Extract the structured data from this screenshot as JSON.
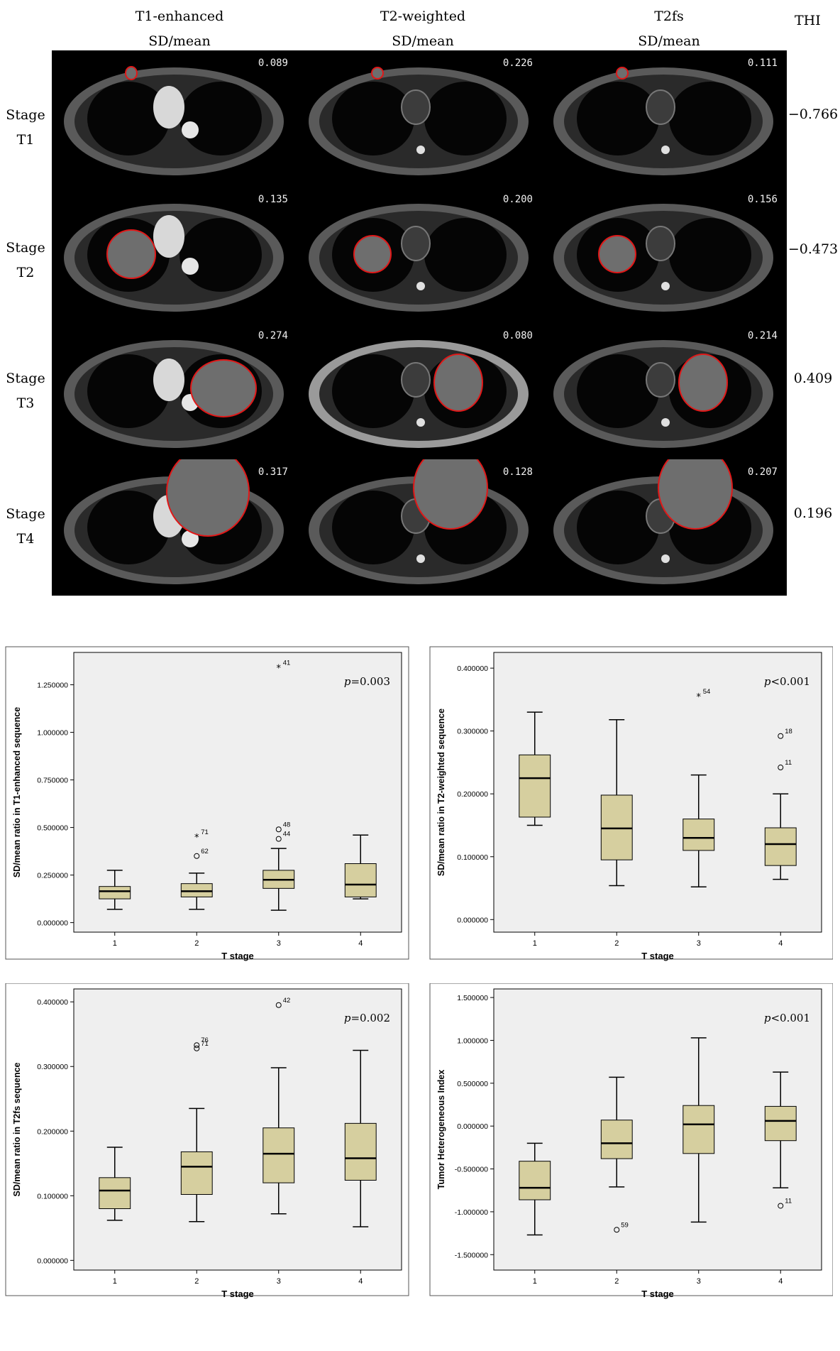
{
  "columns": [
    {
      "name": "T1-enhanced",
      "sub": "SD/mean"
    },
    {
      "name": "T2-weighted",
      "sub": "SD/mean"
    },
    {
      "name": "T2fs",
      "sub": "SD/mean"
    }
  ],
  "thi_header": "THI",
  "rows": [
    {
      "stage_word": "Stage",
      "stage": "T1",
      "values": [
        "0.089",
        "0.226",
        "0.111"
      ],
      "thi": "−0.766"
    },
    {
      "stage_word": "Stage",
      "stage": "T2",
      "values": [
        "0.135",
        "0.200",
        "0.156"
      ],
      "thi": "−0.473"
    },
    {
      "stage_word": "Stage",
      "stage": "T3",
      "values": [
        "0.274",
        "0.080",
        "0.214"
      ],
      "thi": "0.409"
    },
    {
      "stage_word": "Stage",
      "stage": "T4",
      "values": [
        "0.317",
        "0.128",
        "0.207"
      ],
      "thi": "0.196"
    }
  ],
  "colors": {
    "box_fill": "#d6cf9f",
    "plot_bg": "#efefef",
    "roi_outline": "#e01818"
  },
  "chart_data": [
    {
      "type": "box",
      "xlabel": "T stage",
      "ylabel": "SD/mean ratio in T1-enhanced sequence",
      "categories": [
        "1",
        "2",
        "3",
        "4"
      ],
      "yticks": [
        "0.000000",
        "0.250000",
        "0.500000",
        "0.750000",
        "1.000000",
        "1.250000"
      ],
      "ylim": [
        -0.05,
        1.42
      ],
      "annotation": {
        "p": "p",
        "text": "=0.003"
      },
      "boxes": [
        {
          "min": 0.07,
          "q1": 0.125,
          "median": 0.165,
          "q3": 0.19,
          "max": 0.275
        },
        {
          "min": 0.07,
          "q1": 0.135,
          "median": 0.165,
          "q3": 0.205,
          "max": 0.26
        },
        {
          "min": 0.065,
          "q1": 0.18,
          "median": 0.225,
          "q3": 0.275,
          "max": 0.39
        },
        {
          "min": 0.125,
          "q1": 0.135,
          "median": 0.2,
          "q3": 0.31,
          "max": 0.46
        }
      ],
      "outliers": [
        {
          "x": "2",
          "y": 0.45,
          "kind": "star",
          "label": "71"
        },
        {
          "x": "2",
          "y": 0.35,
          "kind": "circle",
          "label": "62"
        },
        {
          "x": "3",
          "y": 0.49,
          "kind": "circle",
          "label": "48"
        },
        {
          "x": "3",
          "y": 0.44,
          "kind": "circle",
          "label": "44"
        },
        {
          "x": "3",
          "y": 1.34,
          "kind": "star",
          "label": "41"
        }
      ]
    },
    {
      "type": "box",
      "xlabel": "T stage",
      "ylabel": "SD/mean ratio in T2-weighted sequence",
      "categories": [
        "1",
        "2",
        "3",
        "4"
      ],
      "yticks": [
        "0.000000",
        "0.100000",
        "0.200000",
        "0.300000",
        "0.400000"
      ],
      "ylim": [
        -0.02,
        0.425
      ],
      "annotation": {
        "p": "p",
        "text": "<0.001"
      },
      "boxes": [
        {
          "min": 0.15,
          "q1": 0.163,
          "median": 0.225,
          "q3": 0.262,
          "max": 0.33
        },
        {
          "min": 0.054,
          "q1": 0.095,
          "median": 0.145,
          "q3": 0.198,
          "max": 0.318
        },
        {
          "min": 0.052,
          "q1": 0.11,
          "median": 0.13,
          "q3": 0.16,
          "max": 0.23
        },
        {
          "min": 0.064,
          "q1": 0.086,
          "median": 0.12,
          "q3": 0.146,
          "max": 0.2
        }
      ],
      "outliers": [
        {
          "x": "3",
          "y": 0.355,
          "kind": "star",
          "label": "54"
        },
        {
          "x": "4",
          "y": 0.292,
          "kind": "circle",
          "label": "18"
        },
        {
          "x": "4",
          "y": 0.242,
          "kind": "circle",
          "label": "11"
        }
      ]
    },
    {
      "type": "box",
      "xlabel": "T stage",
      "ylabel": "SD/mean ratio in T2fs sequence",
      "categories": [
        "1",
        "2",
        "3",
        "4"
      ],
      "yticks": [
        "0.000000",
        "0.100000",
        "0.200000",
        "0.300000",
        "0.400000"
      ],
      "ylim": [
        -0.015,
        0.42
      ],
      "annotation": {
        "p": "p",
        "text": "=0.002"
      },
      "boxes": [
        {
          "min": 0.062,
          "q1": 0.08,
          "median": 0.108,
          "q3": 0.128,
          "max": 0.175
        },
        {
          "min": 0.06,
          "q1": 0.102,
          "median": 0.145,
          "q3": 0.168,
          "max": 0.235
        },
        {
          "min": 0.072,
          "q1": 0.12,
          "median": 0.165,
          "q3": 0.205,
          "max": 0.298
        },
        {
          "min": 0.052,
          "q1": 0.124,
          "median": 0.158,
          "q3": 0.212,
          "max": 0.325
        }
      ],
      "outliers": [
        {
          "x": "2",
          "y": 0.333,
          "kind": "circle",
          "label": "76"
        },
        {
          "x": "2",
          "y": 0.328,
          "kind": "circle",
          "label": "71"
        },
        {
          "x": "3",
          "y": 0.395,
          "kind": "circle",
          "label": "42"
        }
      ]
    },
    {
      "type": "box",
      "xlabel": "T stage",
      "ylabel": "Tumor Heterogeneous Index",
      "categories": [
        "1",
        "2",
        "3",
        "4"
      ],
      "yticks": [
        "-1.500000",
        "-1.000000",
        "-0.500000",
        "0.000000",
        "0.500000",
        "1.000000",
        "1.500000"
      ],
      "ylim": [
        -1.68,
        1.6
      ],
      "annotation": {
        "p": "p",
        "text": "<0.001"
      },
      "boxes": [
        {
          "min": -1.27,
          "q1": -0.86,
          "median": -0.72,
          "q3": -0.41,
          "max": -0.2
        },
        {
          "min": -0.71,
          "q1": -0.38,
          "median": -0.2,
          "q3": 0.07,
          "max": 0.57
        },
        {
          "min": -1.12,
          "q1": -0.32,
          "median": 0.02,
          "q3": 0.24,
          "max": 1.03
        },
        {
          "min": -0.72,
          "q1": -0.17,
          "median": 0.06,
          "q3": 0.23,
          "max": 0.63
        }
      ],
      "outliers": [
        {
          "x": "2",
          "y": -1.21,
          "kind": "circle",
          "label": "59"
        },
        {
          "x": "4",
          "y": -0.93,
          "kind": "circle",
          "label": "11"
        }
      ]
    }
  ]
}
